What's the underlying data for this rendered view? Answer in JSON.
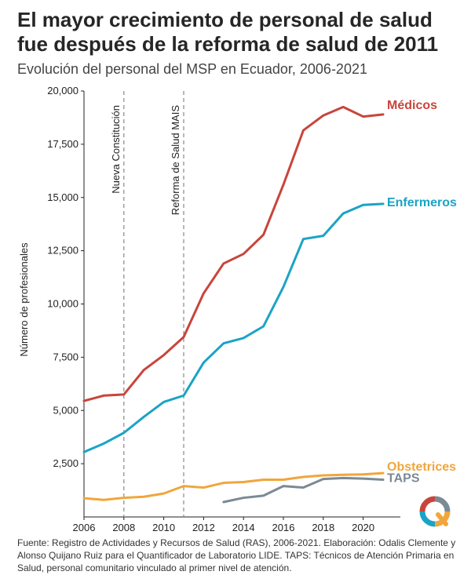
{
  "title": "El mayor crecimiento de personal de salud fue después de la reforma de salud de 2011",
  "subtitle": "Evolución del personal del MSP en Ecuador, 2006-2021",
  "footer": "Fuente: Registro de Actividades y Recursos de Salud (RAS), 2006-2021. Elaboración: Odalis Clemente y Alonso Quijano Ruiz para el Quantificador de Laboratorio LIDE. TAPS: Técnicos de Atención Primaria en Salud, personal comunitario vinculado al primer nivel de atención.",
  "colors": {
    "medicos": "#c8453b",
    "enfermeros": "#1ba3c6",
    "obstetrices": "#f0a63c",
    "taps": "#7b8a94"
  },
  "chart_data": {
    "type": "line",
    "ylabel": "Número de profesionales",
    "xlim": [
      2006,
      2021
    ],
    "ylim": [
      0,
      20000
    ],
    "x_ticks": [
      "2006",
      "2008",
      "2010",
      "2012",
      "2014",
      "2016",
      "2018",
      "2020"
    ],
    "y_ticks": [
      "2,500",
      "5,000",
      "7,500",
      "10,000",
      "12,500",
      "15,000",
      "17,500",
      "20,000"
    ],
    "grid": false,
    "annotations": [
      {
        "x": 2008,
        "label": "Nueva Constitución"
      },
      {
        "x": 2011,
        "label": "Reforma de Salud MAIS"
      }
    ],
    "series": [
      {
        "name": "Médicos",
        "color": "#c8453b",
        "x": [
          2006,
          2007,
          2008,
          2009,
          2010,
          2011,
          2012,
          2013,
          2014,
          2015,
          2016,
          2017,
          2018,
          2019,
          2020,
          2021
        ],
        "values": [
          5450,
          5700,
          5750,
          6900,
          7600,
          8450,
          10500,
          11900,
          12350,
          13250,
          15600,
          18150,
          18850,
          19250,
          18800,
          18900
        ]
      },
      {
        "name": "Enfermeros",
        "color": "#1ba3c6",
        "x": [
          2006,
          2007,
          2008,
          2009,
          2010,
          2011,
          2012,
          2013,
          2014,
          2015,
          2016,
          2017,
          2018,
          2019,
          2020,
          2021
        ],
        "values": [
          3050,
          3450,
          3950,
          4700,
          5400,
          5700,
          7250,
          8150,
          8400,
          8950,
          10800,
          13050,
          13200,
          14250,
          14650,
          14700
        ]
      },
      {
        "name": "Obstetrices",
        "color": "#f0a63c",
        "x": [
          2006,
          2007,
          2008,
          2009,
          2010,
          2011,
          2012,
          2013,
          2014,
          2015,
          2016,
          2017,
          2018,
          2019,
          2020,
          2021
        ],
        "values": [
          880,
          800,
          900,
          950,
          1100,
          1450,
          1380,
          1600,
          1640,
          1750,
          1750,
          1880,
          1950,
          1980,
          2000,
          2060
        ]
      },
      {
        "name": "TAPS",
        "color": "#7b8a94",
        "x": [
          2013,
          2014,
          2015,
          2016,
          2017,
          2018,
          2019,
          2020,
          2021
        ],
        "values": [
          700,
          900,
          1000,
          1450,
          1380,
          1780,
          1830,
          1800,
          1750
        ]
      }
    ]
  }
}
